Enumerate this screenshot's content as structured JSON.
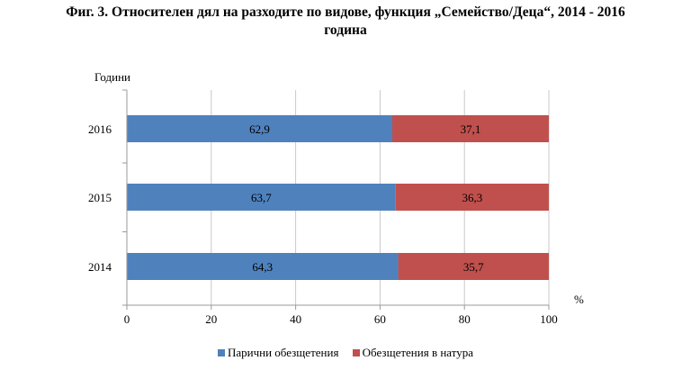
{
  "title": {
    "line1": "Фиг. 3. Относителен дял на разходите по видове, функция „Семейство/Деца“, 2014 - 2016",
    "line2": "година"
  },
  "chart_data": {
    "type": "bar",
    "orientation": "horizontal",
    "stacked": true,
    "title": "Фиг. 3. Относителен дял на разходите по видове, функция „Семейство/Деца“, 2014 - 2016 година",
    "ylabel": "Години",
    "xlabel": "%",
    "categories": [
      "2016",
      "2015",
      "2014"
    ],
    "series": [
      {
        "name": "Парични обезщетения",
        "color": "#4f81bd",
        "values": [
          62.9,
          63.7,
          64.3
        ],
        "labels": [
          "62,9",
          "63,7",
          "64,3"
        ]
      },
      {
        "name": "Обезщетения в натура",
        "color": "#c0504d",
        "values": [
          37.1,
          36.3,
          35.7
        ],
        "labels": [
          "37,1",
          "36,3",
          "35,7"
        ]
      }
    ],
    "xlim": [
      0,
      100
    ],
    "xticks": [
      "0",
      "20",
      "40",
      "60",
      "80",
      "100"
    ],
    "grid": "vertical",
    "legend": "bottom"
  }
}
